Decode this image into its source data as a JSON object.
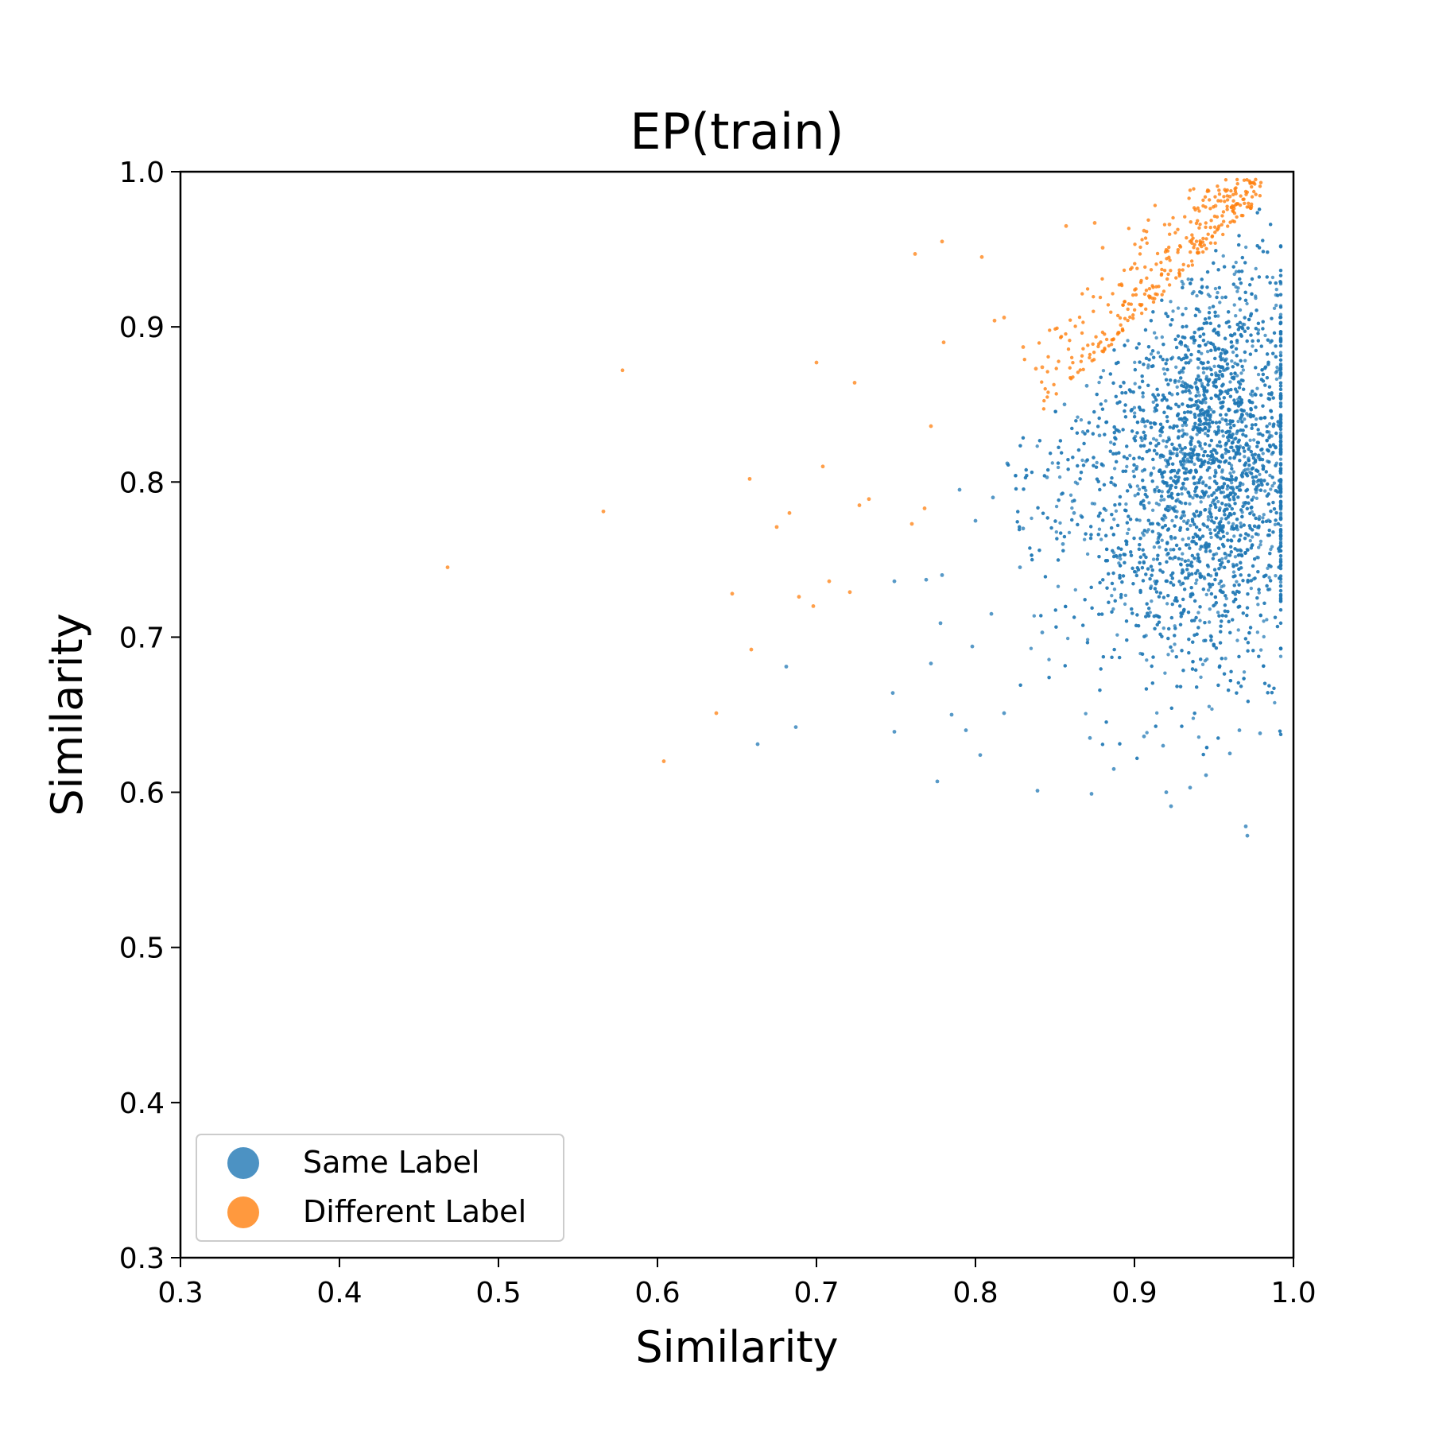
{
  "chart_data": {
    "type": "scatter",
    "title": "EP(train)",
    "xlabel": "Similarity",
    "ylabel": "Similarity",
    "xlim": [
      0.3,
      1.0
    ],
    "ylim": [
      0.3,
      1.0
    ],
    "xticks": [
      "0.3",
      "0.4",
      "0.5",
      "0.6",
      "0.7",
      "0.8",
      "0.9",
      "1.0"
    ],
    "yticks": [
      "0.3",
      "0.4",
      "0.5",
      "0.6",
      "0.7",
      "0.8",
      "0.9",
      "1.0"
    ],
    "legend_position": "bottom-left",
    "grid": false,
    "series": [
      {
        "name": "Same Label",
        "color": "#1f77b4",
        "points": [
          [
            0.663,
            0.631
          ],
          [
            0.681,
            0.681
          ],
          [
            0.687,
            0.642
          ],
          [
            0.749,
            0.736
          ],
          [
            0.748,
            0.664
          ],
          [
            0.749,
            0.639
          ],
          [
            0.769,
            0.737
          ],
          [
            0.772,
            0.683
          ],
          [
            0.776,
            0.607
          ],
          [
            0.778,
            0.709
          ],
          [
            0.779,
            0.74
          ],
          [
            0.785,
            0.65
          ],
          [
            0.794,
            0.64
          ],
          [
            0.798,
            0.694
          ],
          [
            0.803,
            0.624
          ],
          [
            0.81,
            0.715
          ],
          [
            0.818,
            0.651
          ],
          [
            0.828,
            0.745
          ],
          [
            0.839,
            0.601
          ],
          [
            0.842,
            0.703
          ],
          [
            0.855,
            0.76
          ],
          [
            0.872,
            0.635
          ],
          [
            0.873,
            0.599
          ],
          [
            0.887,
            0.615
          ],
          [
            0.906,
            0.636
          ],
          [
            0.918,
            0.63
          ],
          [
            0.92,
            0.6
          ],
          [
            0.923,
            0.591
          ],
          [
            0.935,
            0.603
          ],
          [
            0.945,
            0.611
          ],
          [
            0.96,
            0.625
          ],
          [
            0.966,
            0.64
          ],
          [
            0.97,
            0.578
          ],
          [
            0.971,
            0.572
          ],
          [
            0.979,
            0.638
          ],
          [
            0.79,
            0.795
          ],
          [
            0.8,
            0.775
          ],
          [
            0.811,
            0.79
          ],
          [
            0.82,
            0.812
          ],
          [
            0.83,
            0.77
          ],
          [
            0.845,
            0.803
          ],
          [
            0.856,
            0.85
          ],
          [
            0.862,
            0.78
          ],
          [
            0.87,
            0.862
          ],
          [
            0.878,
            0.83
          ]
        ]
      },
      {
        "name": "Different Label",
        "color": "#ff7f0e",
        "points": [
          [
            0.468,
            0.745
          ],
          [
            0.566,
            0.781
          ],
          [
            0.578,
            0.872
          ],
          [
            0.604,
            0.62
          ],
          [
            0.637,
            0.651
          ],
          [
            0.647,
            0.728
          ],
          [
            0.658,
            0.802
          ],
          [
            0.659,
            0.692
          ],
          [
            0.675,
            0.771
          ],
          [
            0.683,
            0.78
          ],
          [
            0.689,
            0.726
          ],
          [
            0.698,
            0.72
          ],
          [
            0.7,
            0.877
          ],
          [
            0.704,
            0.81
          ],
          [
            0.708,
            0.736
          ],
          [
            0.721,
            0.729
          ],
          [
            0.724,
            0.864
          ],
          [
            0.727,
            0.785
          ],
          [
            0.733,
            0.789
          ],
          [
            0.76,
            0.773
          ],
          [
            0.762,
            0.947
          ],
          [
            0.768,
            0.783
          ],
          [
            0.772,
            0.836
          ],
          [
            0.779,
            0.955
          ],
          [
            0.78,
            0.89
          ],
          [
            0.804,
            0.945
          ],
          [
            0.812,
            0.904
          ],
          [
            0.818,
            0.906
          ],
          [
            0.83,
            0.887
          ],
          [
            0.838,
            0.873
          ],
          [
            0.842,
            0.874
          ],
          [
            0.857,
            0.965
          ],
          [
            0.875,
            0.967
          ],
          [
            0.88,
            0.951
          ],
          [
            0.906,
            0.962
          ],
          [
            0.922,
            0.966
          ],
          [
            0.951,
            0.978
          ],
          [
            0.96,
            0.984
          ],
          [
            0.975,
            0.993
          ]
        ]
      }
    ]
  }
}
